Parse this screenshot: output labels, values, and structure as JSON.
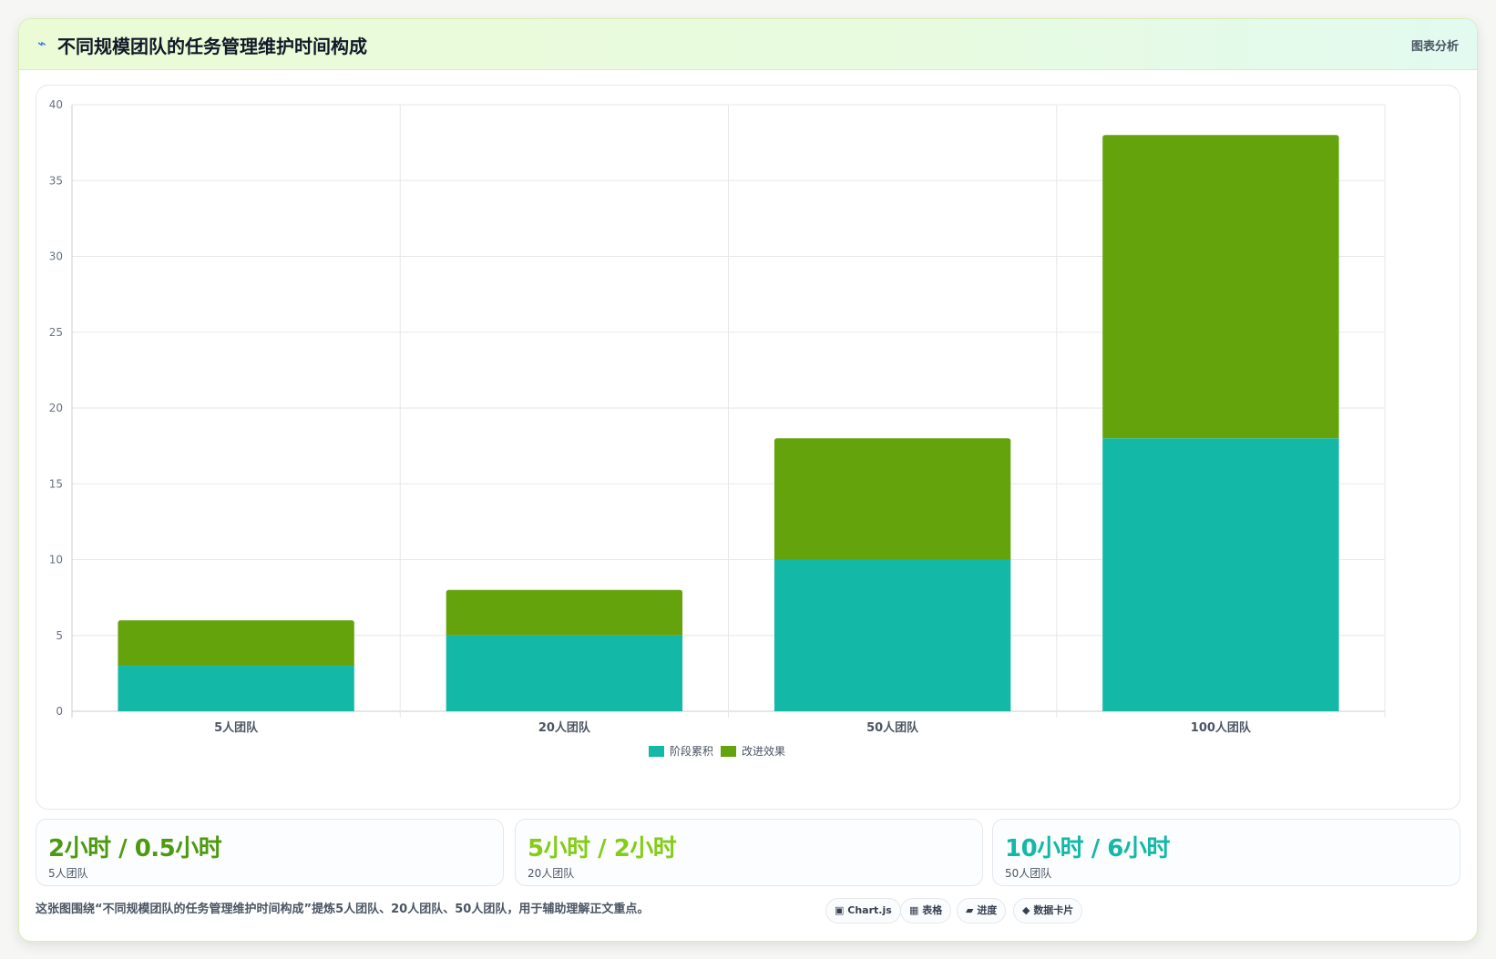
{
  "header": {
    "icon": "⌁",
    "title": "不同规模团队的任务管理维护时间构成",
    "right_label": "图表分析"
  },
  "chart_data": {
    "type": "bar",
    "stacked": true,
    "categories": [
      "5人团队",
      "20人团队",
      "50人团队",
      "100人团队"
    ],
    "series": [
      {
        "name": "阶段累积",
        "values": [
          3,
          5,
          10,
          18
        ],
        "color": "#14b8a6"
      },
      {
        "name": "改进效果",
        "values": [
          3,
          3,
          8,
          20
        ],
        "color": "#65a30d"
      }
    ],
    "ylim": [
      0,
      40
    ],
    "yticks": [
      0,
      5,
      10,
      15,
      20,
      25,
      30,
      35,
      40
    ],
    "grid": true,
    "legend": "bottom"
  },
  "stats": [
    {
      "value": "2小时 / 0.5小时",
      "label": "5人团队",
      "color": "#4d9a0e"
    },
    {
      "value": "5小时 / 2小时",
      "label": "20人团队",
      "color": "#84cc16"
    },
    {
      "value": "10小时 / 6小时",
      "label": "50人团队",
      "color": "#14b8a6"
    }
  ],
  "footer": {
    "text": "这张图围绕“不同规模团队的任务管理维护时间构成”提炼5人团队、20人团队、50人团队，用于辅助理解正文重点。"
  },
  "chips": [
    {
      "icon": "▣",
      "label": "Chart.js"
    },
    {
      "icon": "▦",
      "label": "表格"
    },
    {
      "icon": "▰",
      "label": "进度"
    },
    {
      "icon": "◆",
      "label": "数据卡片"
    }
  ]
}
